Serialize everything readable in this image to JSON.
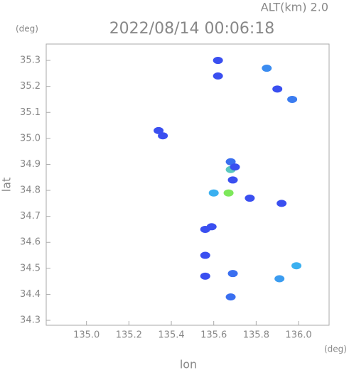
{
  "chart_data": {
    "type": "scatter",
    "title": "2022/08/14 00:06:18",
    "subtitle": "ALT(km) 2.0",
    "x_label": "lon",
    "y_label": "lat",
    "x_unit": "(deg)",
    "y_unit": "(deg)",
    "x": [
      135.62,
      135.62,
      135.85,
      135.9,
      135.97,
      135.36,
      135.34,
      135.68,
      135.68,
      135.7,
      135.67,
      135.77,
      135.6,
      135.92,
      135.69,
      135.56,
      135.56,
      135.69,
      135.68,
      135.91,
      135.99,
      135.56,
      135.59
    ],
    "values": [
      35.3,
      35.24,
      35.27,
      35.19,
      35.15,
      35.01,
      35.03,
      34.88,
      34.91,
      34.89,
      34.79,
      34.77,
      34.79,
      34.75,
      34.84,
      34.55,
      34.47,
      34.48,
      34.39,
      34.46,
      34.51,
      34.65,
      34.66
    ],
    "point_colors": [
      "#3a4ff0",
      "#3a4ff0",
      "#3b8cf0",
      "#3a4ff0",
      "#3b7cf0",
      "#3a4ff0",
      "#3a4ff0",
      "#5ac8c0",
      "#3a6ff0",
      "#3a4ff0",
      "#7de85a",
      "#3a4ff0",
      "#3ab0f0",
      "#3a4ff0",
      "#3a4ff0",
      "#3a4ff0",
      "#3a4ff0",
      "#3a6ff0",
      "#3a6ff0",
      "#3b9cf0",
      "#3bb0f0",
      "#3a4ff0",
      "#3a4ff0"
    ],
    "xlim": [
      134.81,
      136.144
    ],
    "ylim": [
      34.281,
      35.363
    ],
    "xticks": [
      {
        "value": 135.0,
        "label": "135.0"
      },
      135.2,
      135.4,
      135.6,
      135.8,
      {
        "value": 136.0,
        "label": "136.0"
      }
    ],
    "yticks": [
      35.3,
      35.2,
      35.1,
      {
        "value": 35.0,
        "label": "35.0"
      },
      34.9,
      34.8,
      34.7,
      34.6,
      34.5,
      34.4,
      34.3
    ]
  }
}
